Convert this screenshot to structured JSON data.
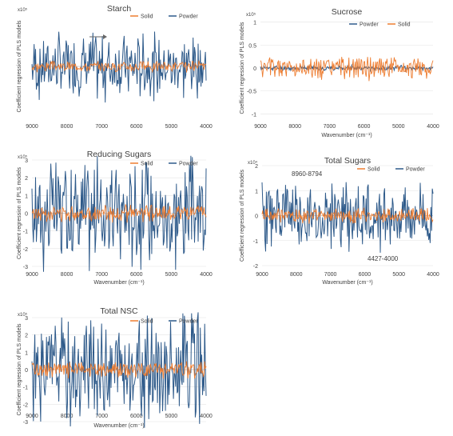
{
  "colors": {
    "solid": "#ED7D31",
    "powder": "#2E5A8A",
    "axis": "#BFBFBF",
    "text": "#404040"
  },
  "chart_data": [
    {
      "type": "line",
      "title": "Starch",
      "multiplier": "x10⁵",
      "xlabel": "",
      "ylabel": "Coefficient regression of PLS models",
      "xlim": [
        9000,
        4000
      ],
      "xticks": [
        9000,
        8000,
        7000,
        6000,
        5000,
        4000
      ],
      "ylim": [
        -1.2,
        1.2
      ],
      "yticks": [],
      "legend": [
        "Solid",
        "Powder"
      ],
      "legend_position": "top-right",
      "annotations": [],
      "arrow": true,
      "series": [
        {
          "name": "Solid",
          "amp": 0.1,
          "seed": 3
        },
        {
          "name": "Powder",
          "amp": 0.6,
          "seed": 7
        }
      ]
    },
    {
      "type": "line",
      "title": "Sucrose",
      "multiplier": "x10⁵",
      "xlabel": "Wavenumber (cm⁻¹)",
      "ylabel": "Coefficient regression of PLS models",
      "xlim": [
        9000,
        4000
      ],
      "xticks": [
        9000,
        8000,
        7000,
        6000,
        5000,
        4000
      ],
      "ylim": [
        -1.1,
        1.1
      ],
      "yticks": [
        1,
        0.5,
        0,
        -0.5,
        -1
      ],
      "legend": [
        "Powder",
        "Solid"
      ],
      "legend_position": "top-right",
      "annotations": [],
      "arrow": false,
      "series": [
        {
          "name": "Powder",
          "amp": 0.05,
          "seed": 11
        },
        {
          "name": "Solid",
          "amp": 0.22,
          "seed": 5
        }
      ]
    },
    {
      "type": "line",
      "title": "Reducing Sugars",
      "multiplier": "x10⁵",
      "xlabel": "Wavenumber (cm⁻¹)",
      "ylabel": "Coefficient regression of PLS models",
      "xlim": [
        9000,
        4000
      ],
      "xticks": [
        9000,
        8000,
        7000,
        6000,
        5000,
        4000
      ],
      "ylim": [
        -3,
        3
      ],
      "yticks": [
        3,
        2,
        1,
        0,
        -1,
        -2,
        -3
      ],
      "legend": [
        "Solid",
        "Powder"
      ],
      "legend_position": "top-right",
      "annotations": [],
      "arrow": false,
      "series": [
        {
          "name": "Solid",
          "amp": 0.15,
          "seed": 13
        },
        {
          "name": "Powder",
          "amp": 1.0,
          "seed": 17
        }
      ]
    },
    {
      "type": "line",
      "title": "Total Sugars",
      "multiplier": "x10⁴",
      "xlabel": "Wavenumber (cm⁻¹)",
      "ylabel": "Coefficient regression of PLS models",
      "xlim": [
        9000,
        4000
      ],
      "xticks": [
        9000,
        8000,
        7000,
        6000,
        5000,
        4000
      ],
      "ylim": [
        -2,
        2
      ],
      "yticks": [
        2,
        1,
        0,
        -1,
        -2
      ],
      "legend": [
        "Solid",
        "Powder"
      ],
      "legend_position": "top-right",
      "annotations": [
        "8960-8794",
        "4427-4000"
      ],
      "arrow": false,
      "series": [
        {
          "name": "Solid",
          "amp": 0.15,
          "seed": 19
        },
        {
          "name": "Powder",
          "amp": 0.7,
          "seed": 23
        }
      ]
    },
    {
      "type": "line",
      "title": "Total NSC",
      "multiplier": "x10⁵",
      "xlabel": "Wavenumber (cm⁻¹)",
      "ylabel": "Coefficient regression of PLS models",
      "xlim": [
        9000,
        4000
      ],
      "xticks": [
        9000,
        8000,
        7000,
        6000,
        5000,
        4000
      ],
      "ylim": [
        -3,
        3
      ],
      "yticks": [
        3,
        2,
        1,
        0,
        -1,
        -2,
        -3
      ],
      "legend": [
        "Solid",
        "Powder"
      ],
      "legend_position": "top-right",
      "annotations": [],
      "arrow": false,
      "series": [
        {
          "name": "Solid",
          "amp": 0.15,
          "seed": 29
        },
        {
          "name": "Powder",
          "amp": 1.0,
          "seed": 31
        }
      ]
    }
  ]
}
